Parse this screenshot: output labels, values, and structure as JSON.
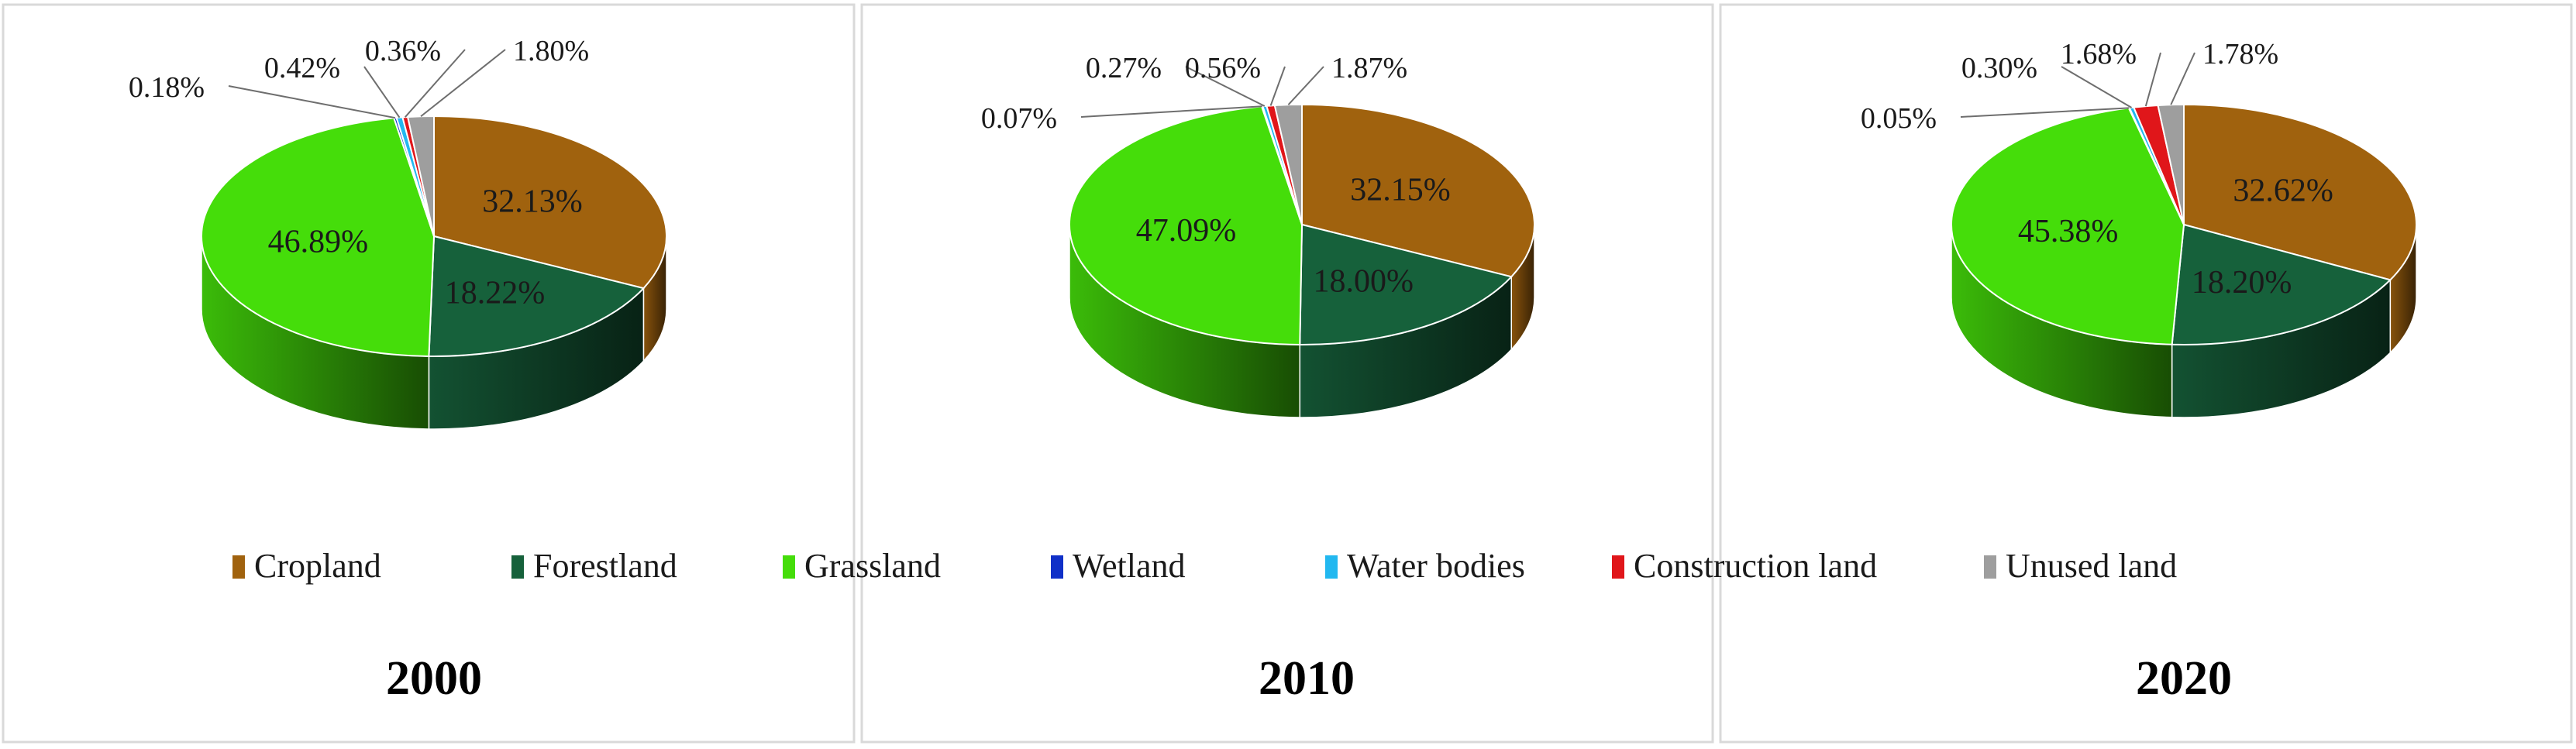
{
  "colors": {
    "Cropland": "#a0620e",
    "Forestland": "#16613b",
    "Grassland": "#45dd0a",
    "Wetland": "#1030c8",
    "Water bodies": "#22b8f0",
    "Construction land": "#e0161a",
    "Unused land": "#9e9e9e"
  },
  "legend": {
    "items": [
      "Cropland",
      "Forestland",
      "Grassland",
      "Wetland",
      "Water bodies",
      "Construction land",
      "Unused land"
    ]
  },
  "chart_data": [
    {
      "type": "pie",
      "title": "2000",
      "categories": [
        "Cropland",
        "Forestland",
        "Grassland",
        "Wetland",
        "Water bodies",
        "Construction land",
        "Unused land"
      ],
      "values": [
        32.13,
        18.22,
        46.89,
        0.18,
        0.42,
        0.36,
        1.8
      ],
      "labels": [
        "32.13%",
        "18.22%",
        "46.89%",
        "0.18%",
        "0.42%",
        "0.36%",
        "1.80%"
      ]
    },
    {
      "type": "pie",
      "title": "2010",
      "categories": [
        "Cropland",
        "Forestland",
        "Grassland",
        "Wetland",
        "Water bodies",
        "Construction land",
        "Unused land"
      ],
      "values": [
        32.15,
        18.0,
        47.09,
        0.07,
        0.27,
        0.56,
        1.87
      ],
      "labels": [
        "32.15%",
        "18.00%",
        "47.09%",
        "0.07%",
        "0.27%",
        "0.56%",
        "1.87%"
      ]
    },
    {
      "type": "pie",
      "title": "2020",
      "categories": [
        "Cropland",
        "Forestland",
        "Grassland",
        "Wetland",
        "Water bodies",
        "Construction land",
        "Unused land"
      ],
      "values": [
        32.62,
        18.2,
        45.38,
        0.05,
        0.3,
        1.68,
        1.78
      ],
      "labels": [
        "32.62%",
        "18.20%",
        "45.38%",
        "0.05%",
        "0.30%",
        "1.68%",
        "1.78%"
      ]
    }
  ]
}
